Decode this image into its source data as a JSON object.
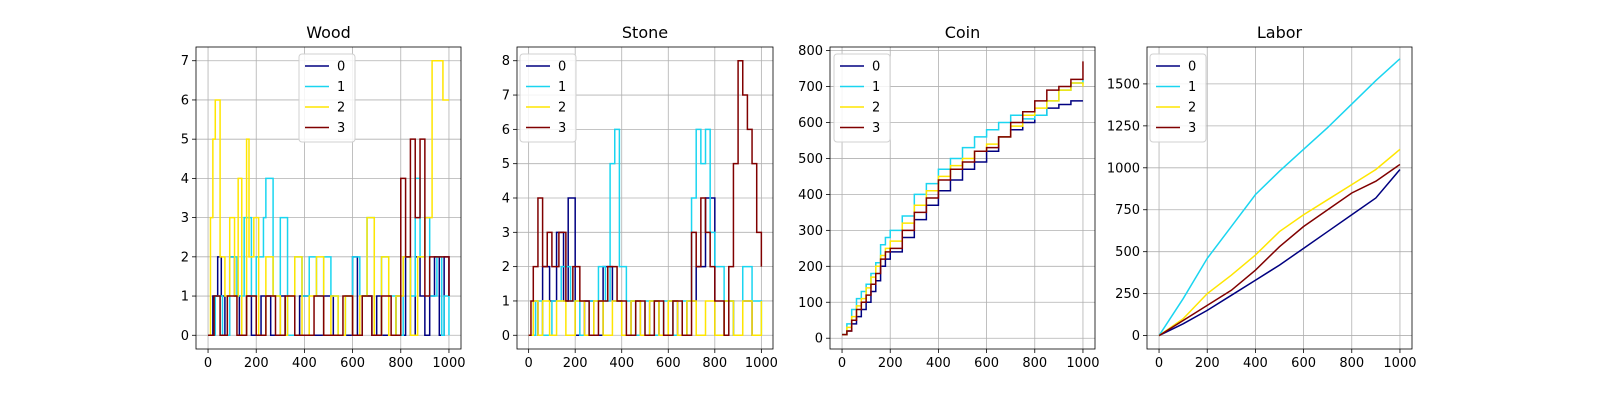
{
  "figure": {
    "colors": {
      "0": "#000080",
      "1": "#1ad5f0",
      "2": "#ffe600",
      "3": "#800000"
    }
  },
  "chart_data": [
    {
      "type": "line",
      "title": "Wood",
      "xlim": [
        -50,
        1050
      ],
      "ylim": [
        -0.35,
        7.35
      ],
      "xticks": [
        0,
        200,
        400,
        600,
        800,
        1000
      ],
      "yticks": [
        0,
        1,
        2,
        3,
        4,
        5,
        6,
        7
      ],
      "ytick_labels": [
        "0",
        "1",
        "2",
        "3",
        "4",
        "5",
        "6",
        "7"
      ],
      "grid": true,
      "legend": "top-center",
      "step": true,
      "series": [
        {
          "name": "0",
          "color": "#000080",
          "x": [
            0,
            20,
            40,
            55,
            70,
            90,
            110,
            130,
            160,
            180,
            220,
            260,
            300,
            320,
            360,
            380,
            420,
            440,
            480,
            520,
            560,
            600,
            620,
            640,
            680,
            700,
            720,
            760,
            780,
            800,
            820,
            840,
            860,
            880,
            900,
            920,
            940,
            960,
            980,
            1000
          ],
          "y": [
            0,
            1,
            2,
            1,
            0,
            2,
            1,
            0,
            1,
            0,
            1,
            0,
            1,
            0,
            0,
            1,
            0,
            0,
            1,
            0,
            0,
            2,
            0,
            1,
            0,
            1,
            0,
            0,
            1,
            0,
            2,
            0,
            2,
            1,
            0,
            1,
            2,
            0,
            2,
            1
          ]
        },
        {
          "name": "1",
          "color": "#1ad5f0",
          "x": [
            0,
            30,
            60,
            90,
            120,
            150,
            180,
            200,
            230,
            240,
            270,
            300,
            330,
            360,
            390,
            420,
            450,
            480,
            510,
            540,
            570,
            600,
            630,
            660,
            690,
            720,
            750,
            780,
            810,
            840,
            860,
            880,
            900,
            920,
            950,
            970,
            980,
            1000
          ],
          "y": [
            0,
            1,
            0,
            2,
            1,
            3,
            1,
            2,
            3,
            4,
            1,
            3,
            0,
            2,
            1,
            2,
            1,
            2,
            1,
            0,
            1,
            2,
            1,
            3,
            0,
            2,
            1,
            0,
            2,
            1,
            4,
            2,
            3,
            1,
            2,
            0,
            1,
            0
          ]
        },
        {
          "name": "2",
          "color": "#ffe600",
          "x": [
            0,
            10,
            20,
            30,
            50,
            70,
            90,
            110,
            125,
            140,
            160,
            170,
            190,
            210,
            240,
            270,
            300,
            330,
            360,
            390,
            420,
            450,
            480,
            510,
            540,
            570,
            600,
            630,
            660,
            690,
            720,
            750,
            780,
            810,
            840,
            870,
            900,
            930,
            960,
            975,
            1000
          ],
          "y": [
            0,
            3,
            5,
            6,
            2,
            1,
            3,
            1,
            4,
            0,
            5,
            2,
            3,
            0,
            2,
            1,
            0,
            1,
            2,
            0,
            1,
            2,
            0,
            1,
            0,
            1,
            0,
            1,
            3,
            0,
            2,
            0,
            1,
            2,
            0,
            2,
            3,
            7,
            7,
            6,
            6
          ]
        },
        {
          "name": "3",
          "color": "#800000",
          "x": [
            0,
            25,
            50,
            80,
            120,
            160,
            200,
            240,
            280,
            320,
            360,
            400,
            440,
            480,
            520,
            560,
            600,
            640,
            680,
            720,
            760,
            800,
            820,
            840,
            860,
            880,
            900,
            920,
            950,
            980,
            1000
          ],
          "y": [
            0,
            1,
            0,
            1,
            0,
            1,
            0,
            1,
            0,
            1,
            0,
            0,
            1,
            0,
            0,
            1,
            0,
            1,
            0,
            1,
            0,
            4,
            2,
            5,
            3,
            5,
            1,
            2,
            2,
            2,
            1
          ]
        }
      ]
    },
    {
      "type": "line",
      "title": "Stone",
      "xlim": [
        -50,
        1050
      ],
      "ylim": [
        -0.4,
        8.4
      ],
      "xticks": [
        0,
        200,
        400,
        600,
        800,
        1000
      ],
      "yticks": [
        0,
        1,
        2,
        3,
        4,
        5,
        6,
        7,
        8
      ],
      "ytick_labels": [
        "0",
        "1",
        "2",
        "3",
        "4",
        "5",
        "6",
        "7",
        "8"
      ],
      "grid": true,
      "legend": "top-left",
      "step": true,
      "series": [
        {
          "name": "0",
          "color": "#000080",
          "x": [
            0,
            20,
            40,
            60,
            90,
            120,
            150,
            170,
            200,
            240,
            280,
            320,
            360,
            400,
            440,
            480,
            520,
            560,
            600,
            640,
            680,
            720,
            760,
            800,
            840,
            880,
            920,
            960,
            1000
          ],
          "y": [
            0,
            1,
            0,
            2,
            1,
            3,
            1,
            4,
            0,
            1,
            0,
            2,
            1,
            0,
            1,
            0,
            1,
            0,
            1,
            0,
            1,
            2,
            4,
            0,
            1,
            0,
            1,
            0,
            0
          ]
        },
        {
          "name": "1",
          "color": "#1ad5f0",
          "x": [
            0,
            30,
            60,
            100,
            140,
            180,
            220,
            260,
            300,
            330,
            350,
            370,
            390,
            420,
            460,
            500,
            540,
            580,
            620,
            660,
            700,
            720,
            740,
            760,
            780,
            800,
            840,
            880,
            920,
            960,
            1000
          ],
          "y": [
            0,
            1,
            0,
            1,
            2,
            1,
            0,
            1,
            2,
            1,
            5,
            6,
            2,
            1,
            0,
            1,
            0,
            1,
            0,
            1,
            4,
            6,
            5,
            6,
            3,
            2,
            1,
            0,
            2,
            1,
            0
          ]
        },
        {
          "name": "2",
          "color": "#ffe600",
          "x": [
            0,
            20,
            40,
            60,
            90,
            120,
            160,
            200,
            240,
            280,
            320,
            360,
            400,
            440,
            480,
            520,
            560,
            600,
            640,
            680,
            720,
            760,
            800,
            840,
            880,
            920,
            960,
            1000
          ],
          "y": [
            0,
            1,
            0,
            1,
            0,
            1,
            0,
            1,
            0,
            1,
            0,
            1,
            0,
            1,
            0,
            1,
            0,
            1,
            0,
            1,
            0,
            1,
            0,
            1,
            0,
            1,
            0,
            1
          ]
        },
        {
          "name": "3",
          "color": "#800000",
          "x": [
            0,
            10,
            20,
            40,
            60,
            80,
            100,
            130,
            160,
            190,
            220,
            260,
            300,
            340,
            380,
            420,
            460,
            500,
            540,
            580,
            620,
            660,
            700,
            720,
            740,
            760,
            780,
            800,
            840,
            860,
            880,
            900,
            920,
            940,
            960,
            980,
            1000
          ],
          "y": [
            0,
            1,
            2,
            4,
            2,
            3,
            2,
            3,
            1,
            2,
            1,
            0,
            1,
            2,
            1,
            0,
            1,
            0,
            1,
            0,
            1,
            0,
            3,
            2,
            4,
            3,
            2,
            1,
            0,
            2,
            5,
            8,
            7,
            6,
            5,
            3,
            2
          ]
        }
      ]
    },
    {
      "type": "line",
      "title": "Coin",
      "xlim": [
        -50,
        1050
      ],
      "ylim": [
        -30,
        810
      ],
      "xticks": [
        0,
        200,
        400,
        600,
        800,
        1000
      ],
      "yticks": [
        0,
        100,
        200,
        300,
        400,
        500,
        600,
        700,
        800
      ],
      "ytick_labels": [
        "0",
        "100",
        "200",
        "300",
        "400",
        "500",
        "600",
        "700",
        "800"
      ],
      "grid": true,
      "legend": "top-left",
      "step": true,
      "series": [
        {
          "name": "0",
          "color": "#000080",
          "x": [
            0,
            20,
            40,
            60,
            80,
            100,
            120,
            140,
            160,
            180,
            200,
            250,
            300,
            350,
            400,
            450,
            500,
            550,
            600,
            650,
            700,
            750,
            800,
            850,
            900,
            950,
            1000
          ],
          "y": [
            10,
            20,
            40,
            60,
            80,
            100,
            130,
            160,
            200,
            220,
            240,
            280,
            330,
            370,
            410,
            440,
            470,
            490,
            520,
            560,
            580,
            600,
            620,
            640,
            650,
            660,
            660
          ]
        },
        {
          "name": "1",
          "color": "#1ad5f0",
          "x": [
            0,
            20,
            40,
            60,
            80,
            100,
            120,
            140,
            160,
            180,
            200,
            250,
            300,
            350,
            400,
            450,
            500,
            550,
            600,
            650,
            700,
            750,
            800,
            850,
            900,
            950,
            1000
          ],
          "y": [
            10,
            40,
            80,
            110,
            130,
            150,
            180,
            210,
            260,
            280,
            300,
            340,
            400,
            430,
            470,
            500,
            530,
            560,
            580,
            600,
            620,
            610,
            620,
            660,
            690,
            710,
            720
          ]
        },
        {
          "name": "2",
          "color": "#ffe600",
          "x": [
            0,
            20,
            40,
            60,
            80,
            100,
            120,
            140,
            160,
            180,
            200,
            250,
            300,
            350,
            400,
            450,
            500,
            550,
            600,
            650,
            700,
            750,
            800,
            850,
            900,
            950,
            1000
          ],
          "y": [
            10,
            30,
            60,
            90,
            110,
            140,
            170,
            200,
            230,
            250,
            270,
            320,
            370,
            410,
            450,
            480,
            500,
            520,
            540,
            560,
            590,
            620,
            640,
            660,
            690,
            710,
            700
          ]
        },
        {
          "name": "3",
          "color": "#800000",
          "x": [
            0,
            20,
            40,
            60,
            80,
            100,
            120,
            140,
            160,
            180,
            200,
            250,
            300,
            350,
            400,
            450,
            500,
            550,
            600,
            650,
            700,
            750,
            800,
            850,
            900,
            950,
            1000
          ],
          "y": [
            10,
            20,
            50,
            80,
            100,
            120,
            150,
            180,
            220,
            240,
            250,
            300,
            350,
            390,
            440,
            470,
            490,
            520,
            530,
            560,
            600,
            630,
            660,
            690,
            700,
            720,
            770
          ]
        }
      ]
    },
    {
      "type": "line",
      "title": "Labor",
      "xlim": [
        -50,
        1050
      ],
      "ylim": [
        -80,
        1720
      ],
      "xticks": [
        0,
        200,
        400,
        600,
        800,
        1000
      ],
      "yticks": [
        0,
        250,
        500,
        750,
        1000,
        1250,
        1500
      ],
      "ytick_labels": [
        "0",
        "250",
        "500",
        "750",
        "1000",
        "1250",
        "1500"
      ],
      "grid": true,
      "legend": "top-left",
      "step": false,
      "series": [
        {
          "name": "0",
          "color": "#000080",
          "x": [
            0,
            100,
            200,
            300,
            400,
            500,
            600,
            700,
            800,
            900,
            1000
          ],
          "y": [
            0,
            70,
            150,
            240,
            330,
            420,
            520,
            620,
            720,
            820,
            990
          ]
        },
        {
          "name": "1",
          "color": "#1ad5f0",
          "x": [
            0,
            100,
            200,
            300,
            400,
            500,
            600,
            700,
            800,
            900,
            1000
          ],
          "y": [
            0,
            220,
            460,
            650,
            840,
            980,
            1110,
            1240,
            1380,
            1520,
            1650
          ]
        },
        {
          "name": "2",
          "color": "#ffe600",
          "x": [
            0,
            100,
            200,
            300,
            400,
            500,
            600,
            700,
            800,
            900,
            1000
          ],
          "y": [
            0,
            100,
            250,
            360,
            480,
            620,
            720,
            810,
            900,
            990,
            1110
          ]
        },
        {
          "name": "3",
          "color": "#800000",
          "x": [
            0,
            100,
            200,
            300,
            400,
            500,
            600,
            700,
            800,
            900,
            1000
          ],
          "y": [
            0,
            90,
            180,
            270,
            390,
            530,
            650,
            750,
            850,
            920,
            1020
          ]
        }
      ]
    }
  ]
}
